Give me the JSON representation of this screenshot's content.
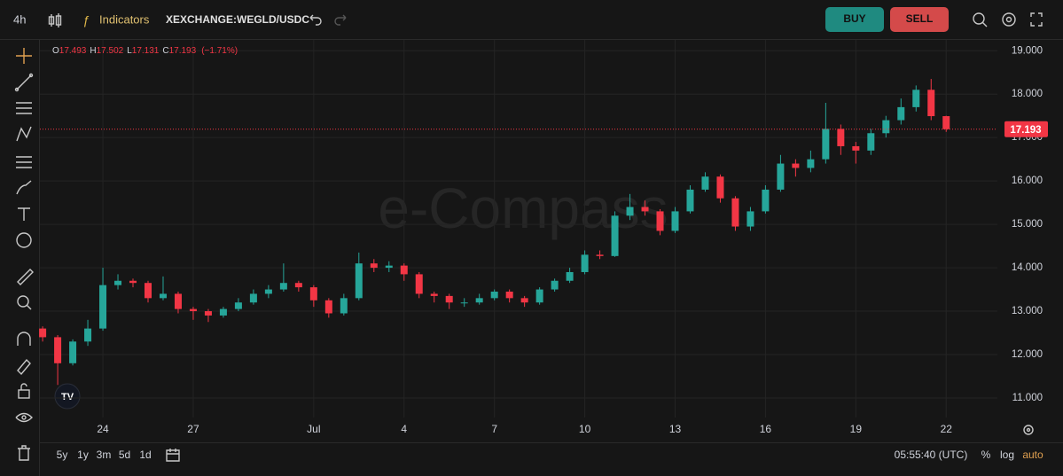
{
  "toolbar": {
    "interval": "4h",
    "indicators": "Indicators",
    "symbol": "XEXCHANGE:WEGLD/USDC",
    "buy": "BUY",
    "sell": "SELL"
  },
  "footer": {
    "ranges": [
      "5y",
      "1y",
      "3m",
      "5d",
      "1d"
    ],
    "clock": "05:55:40 (UTC)",
    "percent": "%",
    "log": "log",
    "auto": "auto"
  },
  "watermark": "e-Compass",
  "legend": {
    "items": [
      {
        "key": "O",
        "value": "17.493"
      },
      {
        "key": "H",
        "value": "17.502"
      },
      {
        "key": "L",
        "value": "17.131"
      },
      {
        "key": "C",
        "value": "17.193"
      }
    ],
    "change": "(−1.71%)"
  },
  "chart_data": {
    "type": "candlestick",
    "up_color": "#26a69a",
    "down_color": "#f23645",
    "grid": true,
    "xlim": [
      -0.3,
      63.4
    ],
    "xticks": [
      {
        "value": 4,
        "label": "24"
      },
      {
        "value": 10,
        "label": "27"
      },
      {
        "value": 18,
        "label": "Jul"
      },
      {
        "value": 24,
        "label": "4"
      },
      {
        "value": 30,
        "label": "7"
      },
      {
        "value": 36,
        "label": "10"
      },
      {
        "value": 42,
        "label": "13"
      },
      {
        "value": 48,
        "label": "16"
      },
      {
        "value": 54,
        "label": "19"
      },
      {
        "value": 60,
        "label": "22"
      }
    ],
    "ylim": [
      10.55,
      19.25
    ],
    "yticks": [
      {
        "value": 11,
        "label": "11.000"
      },
      {
        "value": 12,
        "label": "12.000"
      },
      {
        "value": 13,
        "label": "13.000"
      },
      {
        "value": 14,
        "label": "14.000"
      },
      {
        "value": 15,
        "label": "15.000"
      },
      {
        "value": 16,
        "label": "16.000"
      },
      {
        "value": 17,
        "label": "17.000"
      },
      {
        "value": 18,
        "label": "18.000"
      },
      {
        "value": 19,
        "label": "19.000"
      }
    ],
    "last_price": {
      "value": 17.193,
      "label": "17.193"
    },
    "open": [
      12.6,
      12.4,
      11.8,
      12.3,
      12.6,
      13.6,
      13.7,
      13.65,
      13.3,
      13.4,
      13.05,
      13.0,
      12.9,
      13.05,
      13.2,
      13.4,
      13.5,
      13.65,
      13.55,
      13.25,
      12.95,
      13.3,
      14.1,
      14.0,
      14.05,
      13.85,
      13.4,
      13.35,
      13.2,
      13.2,
      13.3,
      13.45,
      13.3,
      13.2,
      13.5,
      13.7,
      13.9,
      14.3,
      14.27,
      15.2,
      15.4,
      15.3,
      14.85,
      15.3,
      15.8,
      16.1,
      15.6,
      14.95,
      15.3,
      15.8,
      16.4,
      16.3,
      16.5,
      17.2,
      16.8,
      16.7,
      17.1,
      17.4,
      17.7,
      18.1,
      17.493
    ],
    "high": [
      12.65,
      12.45,
      12.35,
      12.8,
      14.0,
      13.85,
      13.75,
      13.7,
      13.8,
      13.45,
      13.1,
      13.05,
      13.1,
      13.3,
      13.5,
      13.6,
      14.1,
      13.7,
      13.6,
      13.3,
      13.4,
      14.35,
      14.2,
      14.15,
      14.1,
      13.9,
      13.45,
      13.4,
      13.3,
      13.4,
      13.5,
      13.5,
      13.35,
      13.55,
      13.75,
      14.0,
      14.4,
      14.4,
      15.3,
      15.7,
      15.55,
      15.35,
      15.4,
      15.9,
      16.2,
      16.15,
      15.65,
      15.4,
      15.9,
      16.6,
      16.5,
      16.7,
      17.8,
      17.3,
      16.9,
      17.2,
      17.5,
      17.9,
      18.2,
      18.35,
      17.502
    ],
    "low": [
      12.3,
      11.3,
      11.75,
      12.2,
      12.55,
      13.5,
      13.55,
      13.2,
      13.25,
      12.95,
      12.8,
      12.75,
      12.85,
      13.0,
      13.15,
      13.3,
      13.45,
      13.45,
      13.1,
      12.85,
      12.9,
      13.25,
      13.9,
      13.9,
      13.7,
      13.3,
      13.2,
      13.05,
      13.1,
      13.15,
      13.25,
      13.2,
      13.1,
      13.15,
      13.45,
      13.65,
      13.85,
      14.2,
      14.25,
      15.1,
      15.2,
      14.75,
      14.8,
      15.25,
      15.75,
      15.5,
      14.85,
      14.85,
      15.25,
      15.75,
      16.1,
      16.2,
      16.4,
      16.6,
      16.4,
      16.6,
      17.0,
      17.3,
      17.6,
      17.4,
      17.131
    ],
    "close": [
      12.4,
      11.8,
      12.3,
      12.6,
      13.6,
      13.7,
      13.65,
      13.3,
      13.4,
      13.05,
      13.0,
      12.9,
      13.05,
      13.2,
      13.4,
      13.5,
      13.65,
      13.55,
      13.25,
      12.95,
      13.3,
      14.1,
      14.0,
      14.05,
      13.85,
      13.4,
      13.35,
      13.2,
      13.2,
      13.3,
      13.45,
      13.3,
      13.2,
      13.5,
      13.7,
      13.9,
      14.3,
      14.27,
      15.2,
      15.4,
      15.3,
      14.85,
      15.3,
      15.8,
      16.1,
      15.6,
      14.95,
      15.3,
      15.8,
      16.4,
      16.3,
      16.5,
      17.2,
      16.8,
      16.7,
      17.1,
      17.4,
      17.7,
      18.1,
      17.493,
      17.193
    ]
  }
}
